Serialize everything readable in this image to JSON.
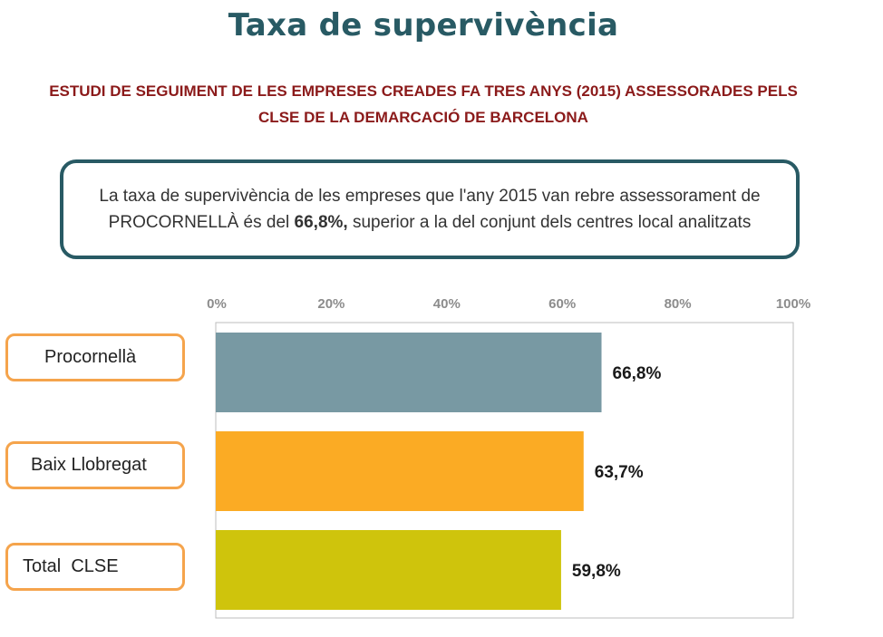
{
  "header": {
    "title": "Taxa de supervivència",
    "subtitle_line1": "ESTUDI DE SEGUIMENT DE LES EMPRESES CREADES FA TRES ANYS (2015) ASSESSORADES PELS",
    "subtitle_line2": "CLSE DE LA DEMARCACIÓ DE BARCELONA"
  },
  "info": {
    "text_before": "La taxa de supervivència de les empreses que l'any 2015 van rebre assessorament de PROCORNELLÀ és del ",
    "highlight": "66,8%,",
    "text_after": " superior a la del conjunt dels centres local analitzats"
  },
  "chart_data": {
    "type": "bar",
    "orientation": "horizontal",
    "categories": [
      "Procornellà",
      "Baix Llobregat",
      "Total  CLSE"
    ],
    "values": [
      66.8,
      63.7,
      59.8
    ],
    "value_labels": [
      "66,8%",
      "63,7%",
      "59,8%"
    ],
    "colors": [
      "#7899a3",
      "#fbab24",
      "#cfc40c"
    ],
    "xlim": [
      0,
      100
    ],
    "x_ticks": [
      0,
      20,
      40,
      60,
      80,
      100
    ],
    "x_tick_labels": [
      "0%",
      "20%",
      "40%",
      "60%",
      "80%",
      "100%"
    ],
    "axis_position": "top",
    "grid": false
  }
}
